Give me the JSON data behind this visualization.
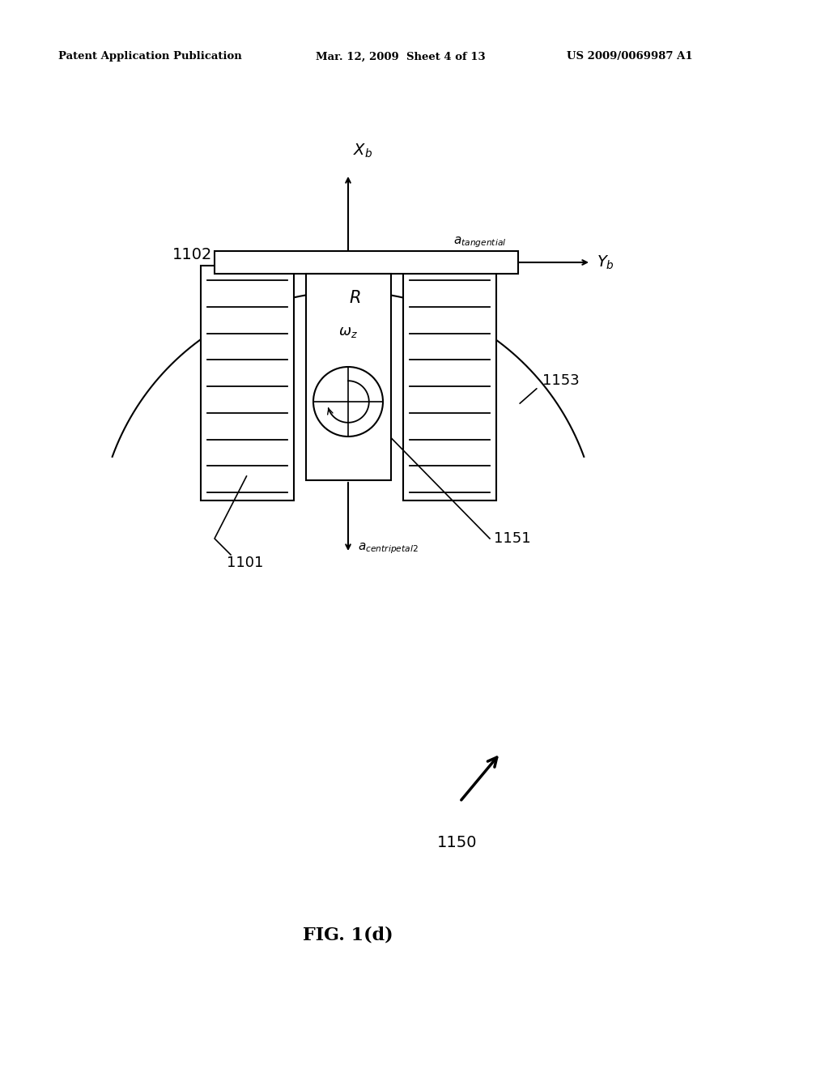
{
  "bg_color": "#ffffff",
  "header_left": "Patent Application Publication",
  "header_mid": "Mar. 12, 2009  Sheet 4 of 13",
  "header_right": "US 2009/0069987 A1",
  "fig_label": "FIG. 1(d)",
  "label_1102": "1102",
  "label_1101": "1101",
  "label_1151": "1151",
  "label_1153": "1153",
  "label_1150": "1150"
}
